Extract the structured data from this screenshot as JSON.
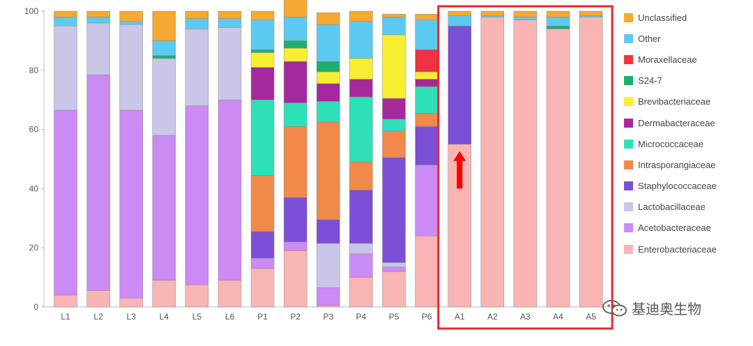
{
  "chart_data": {
    "type": "bar",
    "stacked": true,
    "categories": [
      "L1",
      "L2",
      "L3",
      "L4",
      "L5",
      "L6",
      "P1",
      "P2",
      "P3",
      "P4",
      "P5",
      "P6",
      "A1",
      "A2",
      "A3",
      "A4",
      "A5"
    ],
    "ylim": [
      0,
      100
    ],
    "yticks": [
      "0",
      "20",
      "40",
      "60",
      "80",
      "100"
    ],
    "grid": false,
    "legend_position": "right",
    "series": [
      {
        "name": "Enterobacteriaceae",
        "color": "#f9b4b4",
        "values": [
          4,
          5.5,
          3,
          9,
          7.5,
          9,
          13,
          19,
          0.5,
          10,
          12,
          24,
          55,
          98,
          97,
          94,
          98
        ]
      },
      {
        "name": "Acetobacteraceae",
        "color": "#cc8af5",
        "values": [
          62.5,
          73,
          63.5,
          49,
          60.5,
          61,
          3.5,
          3,
          6,
          8,
          1.5,
          24,
          0,
          0,
          0,
          0,
          0
        ]
      },
      {
        "name": "Lactobacillaceae",
        "color": "#c9c6e8",
        "values": [
          28.5,
          17.5,
          29,
          26,
          26,
          24.5,
          0,
          0,
          15,
          3.5,
          1.5,
          0,
          0,
          0,
          0,
          0,
          0
        ]
      },
      {
        "name": "Staphylococcaceae",
        "color": "#7b4fd6",
        "values": [
          0,
          0,
          0,
          0,
          0,
          0,
          9,
          15,
          8,
          18,
          35.5,
          13,
          40,
          0,
          0,
          0,
          0
        ]
      },
      {
        "name": "Intrasporangiaceae",
        "color": "#f0894a",
        "values": [
          0,
          0,
          0,
          0,
          0,
          0,
          19,
          24,
          33,
          9.5,
          9,
          4.5,
          0,
          0,
          0,
          0,
          0
        ]
      },
      {
        "name": "Micrococcaceae",
        "color": "#2ee0b8",
        "values": [
          0,
          0,
          0,
          0,
          0,
          0,
          25.5,
          8,
          7,
          22,
          4,
          9,
          0,
          0,
          0,
          0,
          0
        ]
      },
      {
        "name": "Dermabacteraceae",
        "color": "#a5289c",
        "values": [
          0,
          0,
          0,
          0,
          0,
          0,
          11,
          14,
          6,
          6,
          7,
          2.5,
          0,
          0,
          0,
          0,
          0
        ]
      },
      {
        "name": "Brevibacteriaceae",
        "color": "#f8ee30",
        "values": [
          0,
          0,
          0,
          0,
          0,
          0,
          5,
          4.5,
          4,
          7,
          21.5,
          2.5,
          0,
          0,
          0,
          0,
          0
        ]
      },
      {
        "name": "S24-7",
        "color": "#1fae6e",
        "values": [
          0,
          0,
          0,
          1,
          0,
          0,
          1,
          2.5,
          3.5,
          0,
          0,
          0,
          0,
          0,
          0,
          1,
          0
        ]
      },
      {
        "name": "Moraxellaceae",
        "color": "#ef3340",
        "values": [
          0,
          0,
          0,
          0,
          0,
          0,
          0,
          0,
          0,
          0,
          0,
          7.5,
          0,
          0,
          0,
          0,
          0
        ]
      },
      {
        "name": "Other",
        "color": "#5ccaf0",
        "values": [
          3,
          2,
          1,
          5,
          3.5,
          3,
          10,
          8,
          12.5,
          12.5,
          6,
          10,
          3.5,
          0.5,
          1,
          3,
          0.5
        ]
      },
      {
        "name": "Unclassified",
        "color": "#f5a832",
        "values": [
          2,
          2,
          3.5,
          10,
          2.5,
          2.5,
          3,
          6,
          4,
          3.5,
          1,
          2,
          1.5,
          1.5,
          2,
          2,
          1.5
        ]
      }
    ],
    "highlight": {
      "categories": [
        "A1",
        "A2",
        "A3",
        "A4",
        "A5"
      ],
      "color": "#e8282e"
    },
    "annotation": {
      "type": "arrow",
      "category": "A1",
      "direction": "up",
      "color": "#ff0000"
    }
  },
  "watermark": {
    "text": "基迪奥生物"
  }
}
